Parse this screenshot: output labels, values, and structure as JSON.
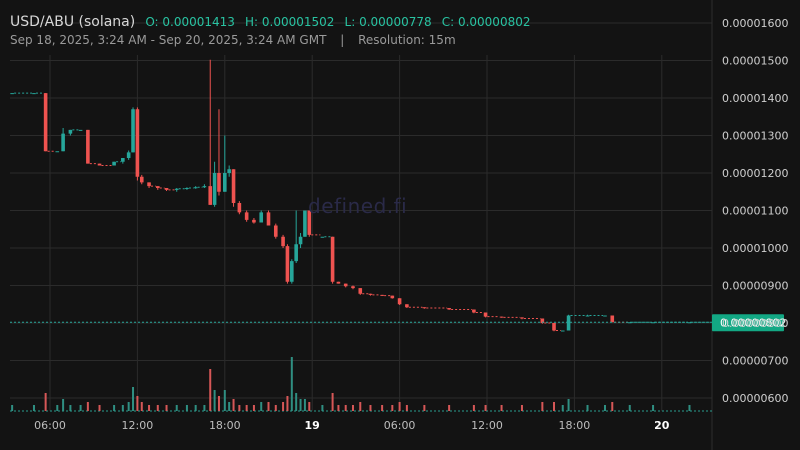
{
  "header": {
    "title": "USD/ABU (solana)",
    "ohlc": {
      "open": "O: 0.00001413",
      "high": "H: 0.00001502",
      "low": "L: 0.00000778",
      "close": "C: 0.00000802"
    },
    "date_range": "Sep 18, 2025, 3:24 AM - Sep 20, 2025, 3:24 AM GMT",
    "separator": "|",
    "resolution": "Resolution: 15m"
  },
  "watermark": "defined.fi",
  "colors": {
    "up": "#26a69a",
    "down": "#ef5350",
    "last_price_tag": "#13a884"
  },
  "chart_data": {
    "type": "candlestick",
    "title": "USD/ABU (solana)",
    "x_unit": "hours since Sep 18, 2025 03:24 AM GMT",
    "y_ticks": [
      "0.00000600",
      "0.00000700",
      "0.00000800",
      "0.00000900",
      "0.00001000",
      "0.00001100",
      "0.00001200",
      "0.00001300",
      "0.00001400",
      "0.00001500",
      "0.00001600"
    ],
    "x_ticks": [
      {
        "label": "06:00",
        "t": 2.6,
        "bold": false
      },
      {
        "label": "12:00",
        "t": 8.6,
        "bold": false
      },
      {
        "label": "18:00",
        "t": 14.6,
        "bold": false
      },
      {
        "label": "19",
        "t": 20.6,
        "bold": true
      },
      {
        "label": "06:00",
        "t": 26.6,
        "bold": false
      },
      {
        "label": "12:00",
        "t": 32.6,
        "bold": false
      },
      {
        "label": "18:00",
        "t": 38.6,
        "bold": false
      },
      {
        "label": "20",
        "t": 44.6,
        "bold": true
      }
    ],
    "last_price": "0.00000802",
    "candles": [
      {
        "t": 0.0,
        "o": 1.413,
        "h": 1.413,
        "l": 1.413,
        "c": 1.413,
        "v": 2
      },
      {
        "t": 1.5,
        "o": 1.413,
        "h": 1.413,
        "l": 1.413,
        "c": 1.413,
        "v": 2
      },
      {
        "t": 2.3,
        "o": 1.413,
        "h": 1.413,
        "l": 1.258,
        "c": 1.258,
        "v": 6
      },
      {
        "t": 3.1,
        "o": 1.258,
        "h": 1.258,
        "l": 1.258,
        "c": 1.258,
        "v": 2
      },
      {
        "t": 3.5,
        "o": 1.258,
        "h": 1.32,
        "l": 1.258,
        "c": 1.305,
        "v": 4
      },
      {
        "t": 4.0,
        "o": 1.305,
        "h": 1.315,
        "l": 1.3,
        "c": 1.315,
        "v": 2
      },
      {
        "t": 4.7,
        "o": 1.315,
        "h": 1.315,
        "l": 1.315,
        "c": 1.315,
        "v": 2
      },
      {
        "t": 5.2,
        "o": 1.315,
        "h": 1.315,
        "l": 1.225,
        "c": 1.225,
        "v": 3
      },
      {
        "t": 6.0,
        "o": 1.225,
        "h": 1.225,
        "l": 1.22,
        "c": 1.22,
        "v": 2
      },
      {
        "t": 7.0,
        "o": 1.22,
        "h": 1.23,
        "l": 1.22,
        "c": 1.23,
        "v": 2
      },
      {
        "t": 7.6,
        "o": 1.23,
        "h": 1.24,
        "l": 1.225,
        "c": 1.24,
        "v": 2
      },
      {
        "t": 8.0,
        "o": 1.24,
        "h": 1.26,
        "l": 1.235,
        "c": 1.255,
        "v": 3
      },
      {
        "t": 8.3,
        "o": 1.255,
        "h": 1.375,
        "l": 1.255,
        "c": 1.37,
        "v": 8
      },
      {
        "t": 8.6,
        "o": 1.37,
        "h": 1.375,
        "l": 1.18,
        "c": 1.19,
        "v": 5
      },
      {
        "t": 8.9,
        "o": 1.19,
        "h": 1.195,
        "l": 1.17,
        "c": 1.175,
        "v": 3
      },
      {
        "t": 9.4,
        "o": 1.175,
        "h": 1.175,
        "l": 1.16,
        "c": 1.165,
        "v": 2
      },
      {
        "t": 10.0,
        "o": 1.165,
        "h": 1.165,
        "l": 1.155,
        "c": 1.16,
        "v": 2
      },
      {
        "t": 10.6,
        "o": 1.16,
        "h": 1.16,
        "l": 1.152,
        "c": 1.155,
        "v": 2
      },
      {
        "t": 11.3,
        "o": 1.155,
        "h": 1.16,
        "l": 1.15,
        "c": 1.158,
        "v": 2
      },
      {
        "t": 12.0,
        "o": 1.158,
        "h": 1.162,
        "l": 1.155,
        "c": 1.16,
        "v": 2
      },
      {
        "t": 12.6,
        "o": 1.16,
        "h": 1.165,
        "l": 1.158,
        "c": 1.162,
        "v": 2
      },
      {
        "t": 13.2,
        "o": 1.162,
        "h": 1.17,
        "l": 1.16,
        "c": 1.165,
        "v": 2
      },
      {
        "t": 13.6,
        "o": 1.165,
        "h": 1.502,
        "l": 1.115,
        "c": 1.115,
        "v": 14
      },
      {
        "t": 13.9,
        "o": 1.115,
        "h": 1.23,
        "l": 1.11,
        "c": 1.2,
        "v": 7
      },
      {
        "t": 14.2,
        "o": 1.2,
        "h": 1.37,
        "l": 1.14,
        "c": 1.15,
        "v": 5
      },
      {
        "t": 14.6,
        "o": 1.15,
        "h": 1.3,
        "l": 1.15,
        "c": 1.2,
        "v": 7
      },
      {
        "t": 14.9,
        "o": 1.2,
        "h": 1.22,
        "l": 1.19,
        "c": 1.21,
        "v": 3
      },
      {
        "t": 15.2,
        "o": 1.21,
        "h": 1.21,
        "l": 1.11,
        "c": 1.12,
        "v": 4
      },
      {
        "t": 15.6,
        "o": 1.12,
        "h": 1.125,
        "l": 1.09,
        "c": 1.095,
        "v": 2
      },
      {
        "t": 16.1,
        "o": 1.095,
        "h": 1.1,
        "l": 1.07,
        "c": 1.075,
        "v": 2
      },
      {
        "t": 16.6,
        "o": 1.075,
        "h": 1.08,
        "l": 1.065,
        "c": 1.068,
        "v": 2
      },
      {
        "t": 17.1,
        "o": 1.068,
        "h": 1.1,
        "l": 1.068,
        "c": 1.095,
        "v": 3
      },
      {
        "t": 17.6,
        "o": 1.095,
        "h": 1.1,
        "l": 1.06,
        "c": 1.06,
        "v": 3
      },
      {
        "t": 18.1,
        "o": 1.06,
        "h": 1.065,
        "l": 1.025,
        "c": 1.03,
        "v": 2
      },
      {
        "t": 18.6,
        "o": 1.03,
        "h": 1.035,
        "l": 1.0,
        "c": 1.005,
        "v": 3
      },
      {
        "t": 18.9,
        "o": 1.005,
        "h": 1.01,
        "l": 0.905,
        "c": 0.91,
        "v": 5
      },
      {
        "t": 19.2,
        "o": 0.91,
        "h": 0.97,
        "l": 0.905,
        "c": 0.965,
        "v": 18
      },
      {
        "t": 19.5,
        "o": 0.965,
        "h": 1.1,
        "l": 0.96,
        "c": 1.01,
        "v": 6
      },
      {
        "t": 19.8,
        "o": 1.01,
        "h": 1.04,
        "l": 1.0,
        "c": 1.03,
        "v": 4
      },
      {
        "t": 20.1,
        "o": 1.03,
        "h": 1.1,
        "l": 1.03,
        "c": 1.1,
        "v": 4
      },
      {
        "t": 20.4,
        "o": 1.1,
        "h": 1.1,
        "l": 1.03,
        "c": 1.035,
        "v": 3
      },
      {
        "t": 21.3,
        "o": 1.03,
        "h": 1.03,
        "l": 1.03,
        "c": 1.03,
        "v": 2
      },
      {
        "t": 22.0,
        "o": 1.03,
        "h": 1.03,
        "l": 0.905,
        "c": 0.91,
        "v": 6
      },
      {
        "t": 22.4,
        "o": 0.91,
        "h": 0.91,
        "l": 0.905,
        "c": 0.905,
        "v": 2
      },
      {
        "t": 22.9,
        "o": 0.905,
        "h": 0.905,
        "l": 0.895,
        "c": 0.898,
        "v": 2
      },
      {
        "t": 23.4,
        "o": 0.898,
        "h": 0.9,
        "l": 0.89,
        "c": 0.893,
        "v": 2
      },
      {
        "t": 23.9,
        "o": 0.893,
        "h": 0.893,
        "l": 0.875,
        "c": 0.878,
        "v": 3
      },
      {
        "t": 24.6,
        "o": 0.878,
        "h": 0.878,
        "l": 0.873,
        "c": 0.875,
        "v": 2
      },
      {
        "t": 25.4,
        "o": 0.875,
        "h": 0.875,
        "l": 0.872,
        "c": 0.873,
        "v": 2
      },
      {
        "t": 26.1,
        "o": 0.873,
        "h": 0.873,
        "l": 0.865,
        "c": 0.866,
        "v": 2
      },
      {
        "t": 26.6,
        "o": 0.866,
        "h": 0.866,
        "l": 0.848,
        "c": 0.85,
        "v": 3
      },
      {
        "t": 27.1,
        "o": 0.85,
        "h": 0.85,
        "l": 0.84,
        "c": 0.842,
        "v": 2
      },
      {
        "t": 28.3,
        "o": 0.842,
        "h": 0.842,
        "l": 0.838,
        "c": 0.84,
        "v": 2
      },
      {
        "t": 30.0,
        "o": 0.84,
        "h": 0.84,
        "l": 0.835,
        "c": 0.836,
        "v": 2
      },
      {
        "t": 31.7,
        "o": 0.836,
        "h": 0.836,
        "l": 0.826,
        "c": 0.828,
        "v": 2
      },
      {
        "t": 32.5,
        "o": 0.828,
        "h": 0.828,
        "l": 0.815,
        "c": 0.817,
        "v": 2
      },
      {
        "t": 33.6,
        "o": 0.817,
        "h": 0.817,
        "l": 0.814,
        "c": 0.815,
        "v": 2
      },
      {
        "t": 35.0,
        "o": 0.815,
        "h": 0.815,
        "l": 0.81,
        "c": 0.812,
        "v": 2
      },
      {
        "t": 36.4,
        "o": 0.812,
        "h": 0.812,
        "l": 0.798,
        "c": 0.8,
        "v": 3
      },
      {
        "t": 37.2,
        "o": 0.8,
        "h": 0.8,
        "l": 0.778,
        "c": 0.78,
        "v": 3
      },
      {
        "t": 37.8,
        "o": 0.78,
        "h": 0.78,
        "l": 0.778,
        "c": 0.78,
        "v": 2
      },
      {
        "t": 38.2,
        "o": 0.78,
        "h": 0.822,
        "l": 0.78,
        "c": 0.82,
        "v": 4
      },
      {
        "t": 39.5,
        "o": 0.82,
        "h": 0.822,
        "l": 0.82,
        "c": 0.82,
        "v": 2
      },
      {
        "t": 40.7,
        "o": 0.82,
        "h": 0.82,
        "l": 0.82,
        "c": 0.82,
        "v": 2
      },
      {
        "t": 41.2,
        "o": 0.82,
        "h": 0.82,
        "l": 0.802,
        "c": 0.802,
        "v": 3
      },
      {
        "t": 42.4,
        "o": 0.802,
        "h": 0.802,
        "l": 0.802,
        "c": 0.802,
        "v": 2
      },
      {
        "t": 44.0,
        "o": 0.802,
        "h": 0.802,
        "l": 0.802,
        "c": 0.802,
        "v": 2
      },
      {
        "t": 46.5,
        "o": 0.802,
        "h": 0.802,
        "l": 0.802,
        "c": 0.802,
        "v": 2
      }
    ]
  }
}
